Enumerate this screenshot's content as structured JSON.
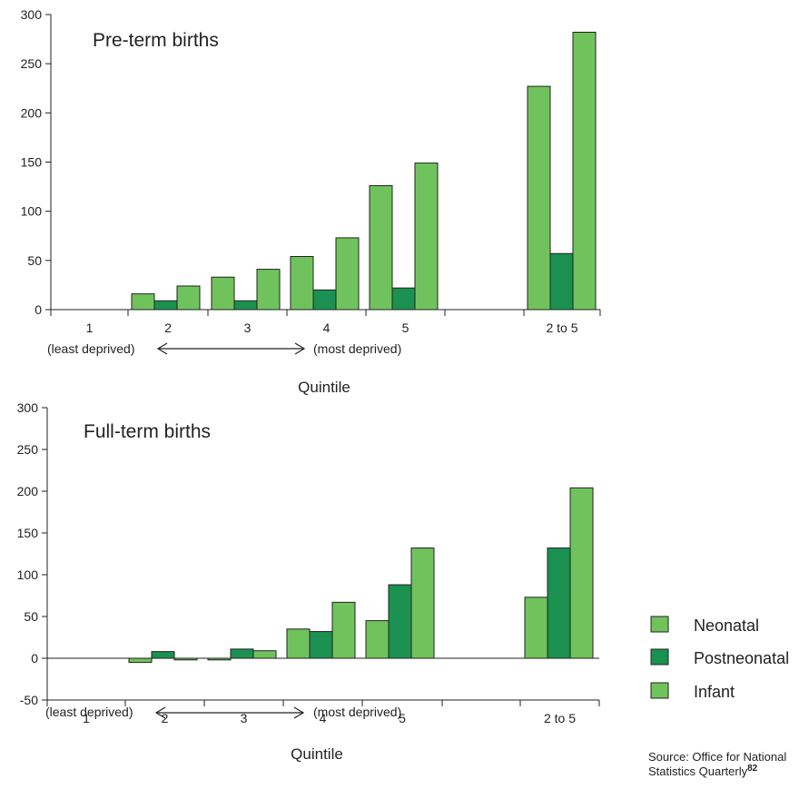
{
  "colors": {
    "neonatal": "#70c35c",
    "postneonatal": "#1a9150",
    "infant": "#70c35c",
    "stroke": "#222222"
  },
  "legend": {
    "position": "right",
    "items": [
      {
        "label": "Neonatal",
        "color": "#70c35c"
      },
      {
        "label": "Postneonatal",
        "color": "#1a9150"
      },
      {
        "label": "Infant",
        "color": "#70c35c"
      }
    ]
  },
  "source": {
    "line1": "Source: Office for National",
    "line2": "Statistics Quarterly",
    "ref": "82"
  },
  "chart_data": [
    {
      "type": "bar",
      "title": "Pre-term births",
      "xlabel": "Quintile",
      "ylabel": "",
      "ylim": [
        0,
        300
      ],
      "yticks": [
        "0",
        "50",
        "100",
        "150",
        "200",
        "250",
        "300"
      ],
      "categories": [
        "1",
        "2",
        "3",
        "4",
        "5",
        "",
        "2 to 5"
      ],
      "notes": {
        "left": "(least deprived)",
        "right": "(most deprived)"
      },
      "series": [
        {
          "name": "Neonatal",
          "values": [
            0,
            16,
            33,
            54,
            126,
            null,
            227
          ]
        },
        {
          "name": "Postneonatal",
          "values": [
            0,
            9,
            9,
            20,
            22,
            null,
            57
          ]
        },
        {
          "name": "Infant",
          "values": [
            0,
            24,
            41,
            73,
            149,
            null,
            282
          ]
        }
      ]
    },
    {
      "type": "bar",
      "title": "Full-term births",
      "xlabel": "Quintile",
      "ylabel": "",
      "ylim": [
        -50,
        300
      ],
      "yticks": [
        "-50",
        "0",
        "50",
        "100",
        "150",
        "200",
        "250",
        "300"
      ],
      "categories": [
        "1",
        "2",
        "3",
        "4",
        "5",
        "",
        "2 to 5"
      ],
      "notes": {
        "left": "(least deprived)",
        "right": "(most deprived)"
      },
      "series": [
        {
          "name": "Neonatal",
          "values": [
            0,
            -5,
            -2,
            35,
            45,
            null,
            73
          ]
        },
        {
          "name": "Postneonatal",
          "values": [
            0,
            8,
            11,
            32,
            88,
            null,
            132
          ]
        },
        {
          "name": "Infant",
          "values": [
            0,
            -2,
            9,
            67,
            132,
            null,
            204
          ]
        }
      ]
    }
  ]
}
